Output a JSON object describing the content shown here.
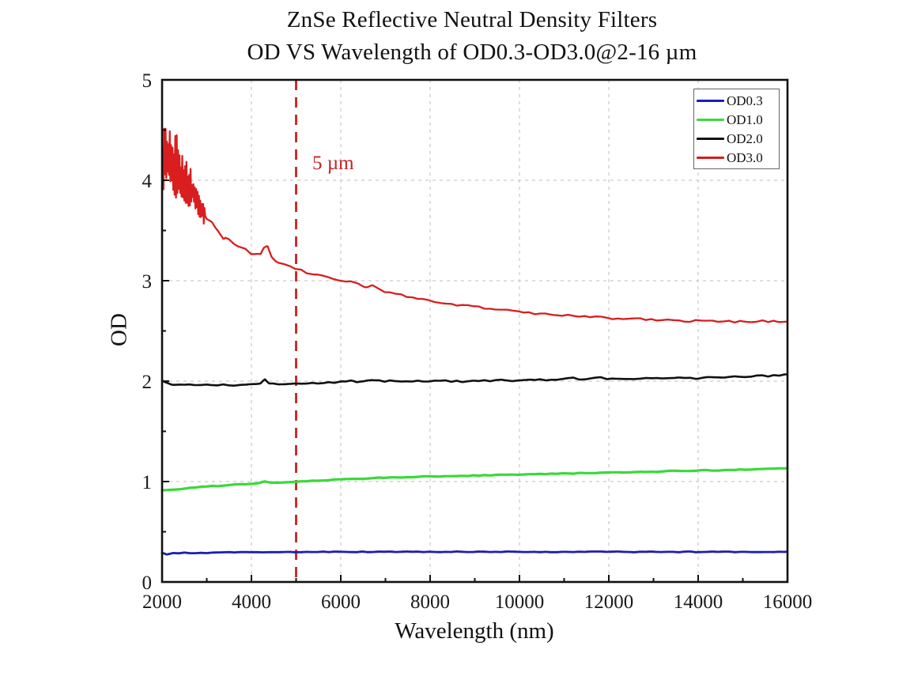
{
  "chart_data": {
    "type": "line",
    "title": "ZnSe Reflective Neutral Density Filters",
    "subtitle": "OD VS Wavelength of OD0.3-OD3.0@2-16 µm",
    "xlabel": "Wavelength (nm)",
    "ylabel": "OD",
    "xlim": [
      2000,
      16000
    ],
    "ylim": [
      0,
      5
    ],
    "x_major_ticks": [
      2000,
      4000,
      6000,
      8000,
      10000,
      12000,
      14000,
      16000
    ],
    "x_minor_ticks": [
      3000,
      5000,
      7000,
      9000,
      11000,
      13000,
      15000
    ],
    "y_major_ticks": [
      0,
      1,
      2,
      3,
      4,
      5
    ],
    "y_minor_ticks": [
      0.5,
      1.5,
      2.5,
      3.5,
      4.5
    ],
    "grid": {
      "show": true,
      "color": "#c9c9c9",
      "style": "dashed"
    },
    "frame_color": "#111111",
    "legend": {
      "position": "top-right"
    },
    "annotation": {
      "text": "5 µm",
      "x": 5000,
      "color": "#c42222",
      "line_style": "dashed"
    },
    "series": [
      {
        "name": "OD0.3",
        "color": "#1c1cb8",
        "width": 2.8,
        "noise": [
          [
            2000,
            16000,
            0.004
          ]
        ],
        "points": [
          [
            2000,
            0.29
          ],
          [
            2100,
            0.276
          ],
          [
            2250,
            0.286
          ],
          [
            2600,
            0.29
          ],
          [
            3000,
            0.29
          ],
          [
            3500,
            0.294
          ],
          [
            4000,
            0.295
          ],
          [
            5000,
            0.298
          ],
          [
            6000,
            0.3
          ],
          [
            7000,
            0.3
          ],
          [
            8000,
            0.3
          ],
          [
            9000,
            0.3
          ],
          [
            10000,
            0.3
          ],
          [
            11000,
            0.3
          ],
          [
            12000,
            0.3
          ],
          [
            13000,
            0.3
          ],
          [
            14000,
            0.3
          ],
          [
            15000,
            0.3
          ],
          [
            16000,
            0.302
          ]
        ]
      },
      {
        "name": "OD1.0",
        "color": "#3bd83b",
        "width": 3.2,
        "noise": [
          [
            2000,
            16000,
            0.004
          ]
        ],
        "points": [
          [
            2000,
            0.91
          ],
          [
            2500,
            0.93
          ],
          [
            3000,
            0.95
          ],
          [
            3500,
            0.965
          ],
          [
            4000,
            0.98
          ],
          [
            4200,
            0.988
          ],
          [
            4300,
            1.0
          ],
          [
            4450,
            0.99
          ],
          [
            5000,
            1.0
          ],
          [
            5500,
            1.01
          ],
          [
            6000,
            1.02
          ],
          [
            6500,
            1.03
          ],
          [
            7000,
            1.04
          ],
          [
            7500,
            1.045
          ],
          [
            8000,
            1.05
          ],
          [
            8500,
            1.055
          ],
          [
            9000,
            1.06
          ],
          [
            9500,
            1.065
          ],
          [
            10000,
            1.07
          ],
          [
            10500,
            1.075
          ],
          [
            11000,
            1.08
          ],
          [
            11500,
            1.085
          ],
          [
            12000,
            1.09
          ],
          [
            12500,
            1.092
          ],
          [
            13000,
            1.098
          ],
          [
            13500,
            1.105
          ],
          [
            14000,
            1.11
          ],
          [
            14500,
            1.112
          ],
          [
            14750,
            1.118
          ],
          [
            15000,
            1.118
          ],
          [
            15500,
            1.124
          ],
          [
            16000,
            1.13
          ]
        ]
      },
      {
        "name": "OD2.0",
        "color": "#111111",
        "width": 2.6,
        "noise": [
          [
            2000,
            6000,
            0.006
          ],
          [
            6000,
            12000,
            0.01
          ],
          [
            12000,
            16000,
            0.008
          ]
        ],
        "points": [
          [
            2000,
            2.0
          ],
          [
            2080,
            1.985
          ],
          [
            2200,
            1.97
          ],
          [
            2350,
            1.965
          ],
          [
            2500,
            1.968
          ],
          [
            2700,
            1.962
          ],
          [
            3000,
            1.96
          ],
          [
            3300,
            1.962
          ],
          [
            3600,
            1.96
          ],
          [
            4000,
            1.968
          ],
          [
            4200,
            1.975
          ],
          [
            4300,
            2.02
          ],
          [
            4400,
            1.98
          ],
          [
            4600,
            1.972
          ],
          [
            5000,
            1.978
          ],
          [
            5500,
            1.982
          ],
          [
            6000,
            1.99
          ],
          [
            6300,
            2.0
          ],
          [
            6500,
            1.995
          ],
          [
            6700,
            2.005
          ],
          [
            7000,
            1.998
          ],
          [
            7300,
            2.0
          ],
          [
            7600,
            1.998
          ],
          [
            8000,
            2.0
          ],
          [
            8500,
            2.0
          ],
          [
            9000,
            2.0
          ],
          [
            9500,
            2.005
          ],
          [
            10000,
            2.01
          ],
          [
            10300,
            2.02
          ],
          [
            10600,
            2.01
          ],
          [
            10900,
            2.02
          ],
          [
            11200,
            2.025
          ],
          [
            11500,
            2.02
          ],
          [
            11800,
            2.03
          ],
          [
            12100,
            2.02
          ],
          [
            12500,
            2.022
          ],
          [
            13000,
            2.024
          ],
          [
            13500,
            2.03
          ],
          [
            14000,
            2.03
          ],
          [
            14300,
            2.045
          ],
          [
            14600,
            2.04
          ],
          [
            15000,
            2.045
          ],
          [
            15300,
            2.05
          ],
          [
            15600,
            2.05
          ],
          [
            16000,
            2.065
          ]
        ]
      },
      {
        "name": "OD3.0",
        "color": "#d81e1e",
        "width": 2.3,
        "noise": [
          [
            2000,
            2350,
            0.33
          ],
          [
            2350,
            2650,
            0.22
          ],
          [
            2650,
            2950,
            0.12
          ],
          [
            2950,
            3400,
            0.045
          ],
          [
            3400,
            4200,
            0.02
          ],
          [
            4200,
            16000,
            0.011
          ]
        ],
        "points": [
          [
            2000,
            4.15
          ],
          [
            2060,
            4.3
          ],
          [
            2120,
            4.2
          ],
          [
            2180,
            4.25
          ],
          [
            2250,
            4.1
          ],
          [
            2320,
            4.15
          ],
          [
            2400,
            4.05
          ],
          [
            2500,
            4.0
          ],
          [
            2600,
            3.92
          ],
          [
            2700,
            3.88
          ],
          [
            2800,
            3.78
          ],
          [
            2900,
            3.7
          ],
          [
            3000,
            3.63
          ],
          [
            3100,
            3.58
          ],
          [
            3200,
            3.52
          ],
          [
            3300,
            3.48
          ],
          [
            3400,
            3.44
          ],
          [
            3500,
            3.4
          ],
          [
            3600,
            3.37
          ],
          [
            3700,
            3.34
          ],
          [
            3800,
            3.32
          ],
          [
            3900,
            3.3
          ],
          [
            4000,
            3.28
          ],
          [
            4100,
            3.26
          ],
          [
            4200,
            3.25
          ],
          [
            4280,
            3.32
          ],
          [
            4360,
            3.34
          ],
          [
            4450,
            3.24
          ],
          [
            4550,
            3.2
          ],
          [
            4700,
            3.17
          ],
          [
            4850,
            3.14
          ],
          [
            5000,
            3.12
          ],
          [
            5200,
            3.09
          ],
          [
            5400,
            3.06
          ],
          [
            5600,
            3.04
          ],
          [
            5800,
            3.02
          ],
          [
            6000,
            3.01
          ],
          [
            6200,
            2.99
          ],
          [
            6400,
            2.97
          ],
          [
            6550,
            2.94
          ],
          [
            6700,
            2.95
          ],
          [
            6850,
            2.91
          ],
          [
            7000,
            2.89
          ],
          [
            7200,
            2.87
          ],
          [
            7400,
            2.85
          ],
          [
            7600,
            2.83
          ],
          [
            7800,
            2.82
          ],
          [
            8000,
            2.8
          ],
          [
            8250,
            2.78
          ],
          [
            8500,
            2.77
          ],
          [
            8750,
            2.75
          ],
          [
            9000,
            2.74
          ],
          [
            9250,
            2.72
          ],
          [
            9500,
            2.71
          ],
          [
            9750,
            2.7
          ],
          [
            10000,
            2.69
          ],
          [
            10250,
            2.68
          ],
          [
            10500,
            2.67
          ],
          [
            10750,
            2.66
          ],
          [
            11000,
            2.655
          ],
          [
            11250,
            2.645
          ],
          [
            11500,
            2.64
          ],
          [
            11750,
            2.635
          ],
          [
            12000,
            2.63
          ],
          [
            12250,
            2.625
          ],
          [
            12500,
            2.62
          ],
          [
            12750,
            2.615
          ],
          [
            13000,
            2.61
          ],
          [
            13250,
            2.61
          ],
          [
            13500,
            2.605
          ],
          [
            13750,
            2.6
          ],
          [
            14000,
            2.6
          ],
          [
            14250,
            2.6
          ],
          [
            14500,
            2.598
          ],
          [
            14750,
            2.595
          ],
          [
            15000,
            2.59
          ],
          [
            15250,
            2.595
          ],
          [
            15500,
            2.6
          ],
          [
            15750,
            2.595
          ],
          [
            16000,
            2.6
          ]
        ]
      }
    ]
  }
}
